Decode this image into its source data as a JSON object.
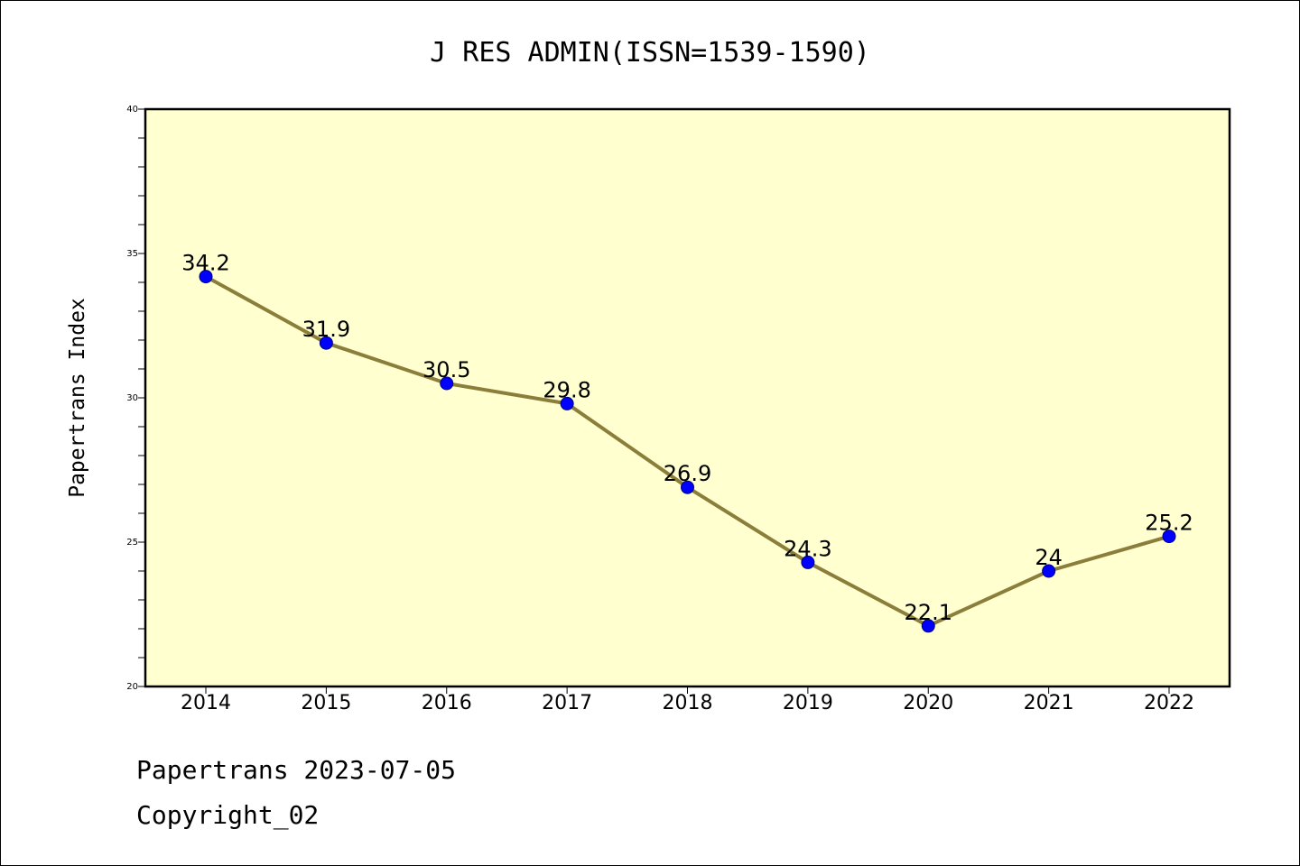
{
  "chart_data": {
    "type": "line",
    "title": "J RES ADMIN(ISSN=1539-1590)",
    "xlabel": "",
    "ylabel": "Papertrans Index",
    "x": [
      "2014",
      "2015",
      "2016",
      "2017",
      "2018",
      "2019",
      "2020",
      "2021",
      "2022"
    ],
    "series": [
      {
        "values": [
          34.2,
          31.9,
          30.5,
          29.8,
          26.9,
          24.3,
          22.1,
          24,
          25.2
        ],
        "labels": [
          "34.2",
          "31.9",
          "30.5",
          "29.8",
          "26.9",
          "24.3",
          "22.1",
          "24",
          "25.2"
        ]
      }
    ],
    "ylim": [
      20,
      40
    ],
    "yticks": [
      "20",
      "25",
      "30",
      "35",
      "40"
    ],
    "grid": false,
    "colors": {
      "plot_background": "#ffffd0",
      "line": "#8b7d3a",
      "marker": "#0000ff"
    }
  },
  "footer": {
    "line1": "Papertrans 2023-07-05",
    "line2": "Copyright_02"
  }
}
